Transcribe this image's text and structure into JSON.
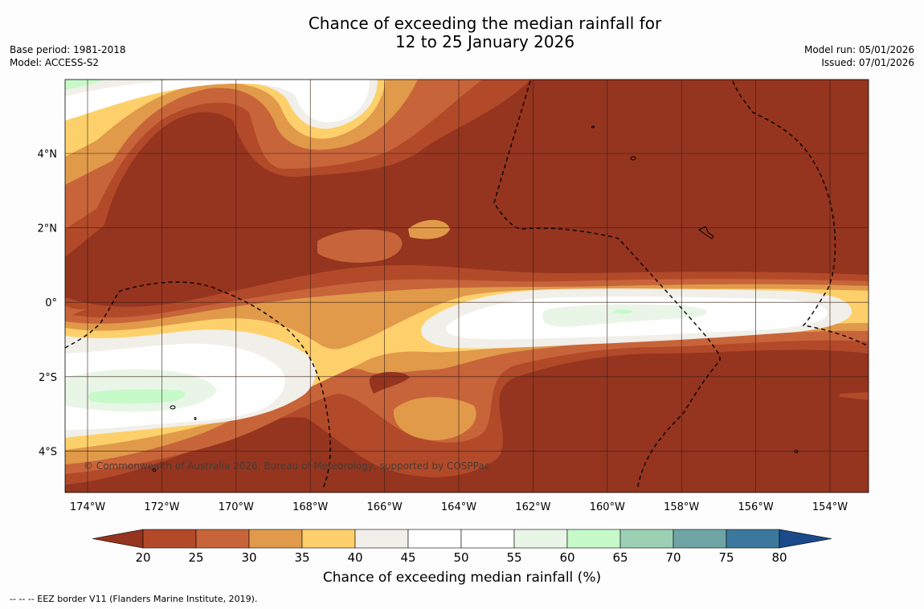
{
  "title": {
    "line1": "Chance of exceeding the median rainfall for",
    "line2": "12 to 25 January 2026"
  },
  "meta_left": {
    "base_period": "Base period: 1981-2018",
    "model": "Model: ACCESS-S2"
  },
  "meta_right": {
    "model_run": "Model run: 05/01/2026",
    "issued": "Issued: 07/01/2026"
  },
  "map": {
    "lon_ticks": [
      "174°W",
      "172°W",
      "170°W",
      "168°W",
      "166°W",
      "164°W",
      "162°W",
      "160°W",
      "158°W",
      "156°W",
      "154°W"
    ],
    "lat_ticks": [
      "4°N",
      "2°N",
      "0°",
      "2°S",
      "4°S"
    ],
    "copyright": "© Commonwealth of Australia 2026, Bureau of Meteorology, supported by COSPPac"
  },
  "colorbar": {
    "ticks": [
      "20",
      "25",
      "30",
      "35",
      "40",
      "45",
      "50",
      "55",
      "60",
      "65",
      "70",
      "75",
      "80"
    ],
    "colors": [
      "#95341f",
      "#b24a2a",
      "#c8643a",
      "#e09a4a",
      "#fdd06b",
      "#f1efe9",
      "#ffffff",
      "#ffffff",
      "#e9f6e7",
      "#c6fac9",
      "#9ccfb4",
      "#6fa4a4",
      "#3c789d",
      "#1a4a8a"
    ],
    "label": "Chance of exceeding median rainfall (%)"
  },
  "footnote": "--  --  -- EEZ border V11 (Flanders Marine Institute, 2019)."
}
